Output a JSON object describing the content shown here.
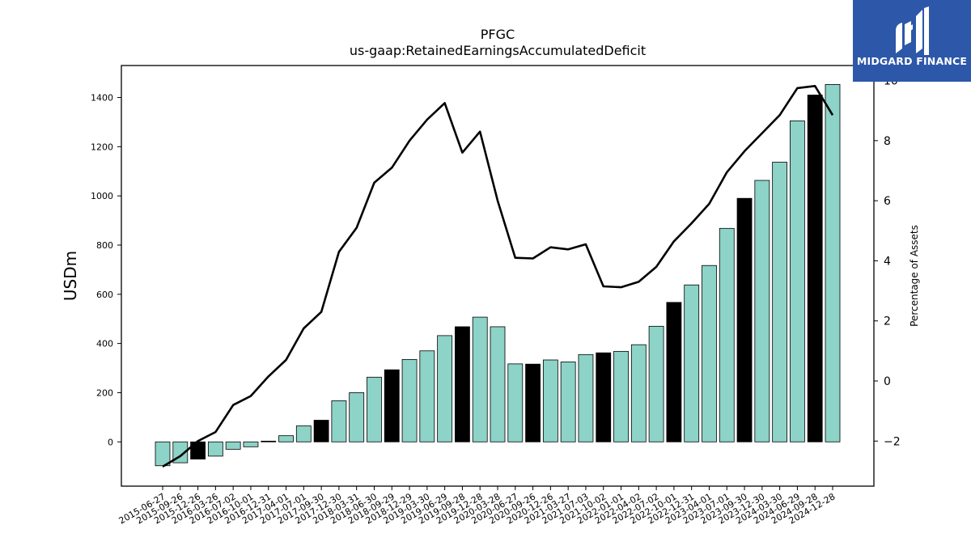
{
  "chart_data": {
    "type": "bar",
    "title": "PFGC",
    "subtitle": "us-gaap:RetainedEarningsAccumulatedDeficit",
    "ylabel": "USDm",
    "y2label": "Percentage of Assets",
    "ylim": [
      -180,
      1530
    ],
    "y2lim": [
      -3.5,
      10.5
    ],
    "yticks": [
      0,
      200,
      400,
      600,
      800,
      1000,
      1200,
      1400
    ],
    "y2ticks": [
      -2,
      0,
      2,
      4,
      6,
      8,
      10
    ],
    "categories": [
      "2015-06-27",
      "2015-09-26",
      "2015-12-26",
      "2016-03-26",
      "2016-07-02",
      "2016-10-01",
      "2016-12-31",
      "2017-04-01",
      "2017-07-01",
      "2017-09-30",
      "2017-12-30",
      "2018-03-31",
      "2018-06-30",
      "2018-09-29",
      "2018-12-29",
      "2019-03-30",
      "2019-06-29",
      "2019-09-28",
      "2019-12-28",
      "2020-03-28",
      "2020-06-27",
      "2020-09-26",
      "2020-12-26",
      "2021-03-27",
      "2021-07-03",
      "2021-10-02",
      "2022-01-01",
      "2022-04-02",
      "2022-07-02",
      "2022-10-01",
      "2022-12-31",
      "2023-04-01",
      "2023-07-01",
      "2023-09-30",
      "2023-12-30",
      "2024-03-30",
      "2024-06-29",
      "2024-09-28",
      "2024-12-28"
    ],
    "series": [
      {
        "type": "bar",
        "values": [
          -97,
          -85,
          -70,
          -58,
          -30,
          -20,
          3,
          25,
          65,
          88,
          167,
          200,
          263,
          293,
          335,
          370,
          432,
          468,
          507,
          468,
          317,
          316,
          333,
          325,
          355,
          362,
          368,
          395,
          470,
          567,
          638,
          717,
          868,
          990,
          1063,
          1137,
          1305,
          1410,
          1453
        ],
        "highlight": [
          false,
          false,
          true,
          false,
          false,
          false,
          true,
          false,
          false,
          true,
          false,
          false,
          false,
          true,
          false,
          false,
          false,
          true,
          false,
          false,
          false,
          true,
          false,
          false,
          false,
          true,
          false,
          false,
          false,
          true,
          false,
          false,
          false,
          true,
          false,
          false,
          false,
          true,
          false
        ],
        "colors": {
          "normal": "#8dd3c7",
          "highlight": "#000000"
        }
      },
      {
        "type": "line",
        "axis": "y2",
        "color": "#000000",
        "values": [
          -2.85,
          -2.5,
          -2.0,
          -1.7,
          -0.8,
          -0.5,
          0.15,
          0.7,
          1.75,
          2.3,
          4.3,
          5.1,
          6.6,
          7.1,
          8.0,
          8.7,
          9.25,
          7.6,
          8.3,
          6.0,
          4.1,
          4.08,
          4.45,
          4.38,
          4.55,
          3.15,
          3.12,
          3.3,
          3.8,
          4.65,
          5.25,
          5.9,
          6.95,
          7.65,
          8.25,
          8.85,
          9.75,
          9.82,
          8.85
        ]
      }
    ]
  },
  "logo": {
    "text": "MIDGARD FINANCE",
    "color": "#2d57a8"
  }
}
